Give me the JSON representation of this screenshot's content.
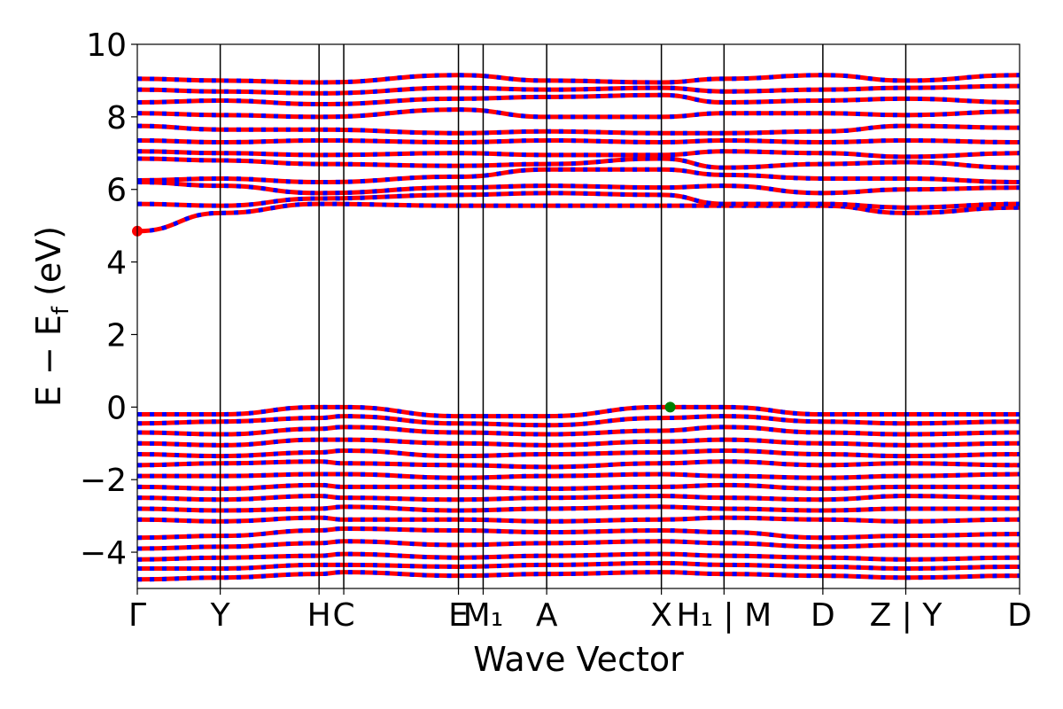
{
  "chart_data": {
    "type": "line",
    "title": "",
    "xlabel": "Wave Vector",
    "ylabel_parts": {
      "main": "E − E",
      "sub": "f",
      "unit": " (eV)"
    },
    "ylim": [
      -5,
      10
    ],
    "yticks": [
      -4,
      -2,
      0,
      2,
      4,
      6,
      8,
      10
    ],
    "ytick_labels": [
      "−4",
      "−2",
      "0",
      "2",
      "4",
      "6",
      "8",
      "10"
    ],
    "xlim": [
      0,
      1
    ],
    "grid": false,
    "legend": "none",
    "high_symmetry_points": [
      {
        "label": "Γ",
        "x": 0.0
      },
      {
        "label": "Y",
        "x": 0.094
      },
      {
        "label": "H",
        "x": 0.206,
        "vertical_line": true
      },
      {
        "label": "C",
        "x": 0.234
      },
      {
        "label": "E",
        "x": 0.364
      },
      {
        "label": "M₁",
        "x": 0.392
      },
      {
        "label": "A",
        "x": 0.464
      },
      {
        "label": "X",
        "x": 0.594
      },
      {
        "label": "H₁ | M",
        "x": 0.665
      },
      {
        "label": "D",
        "x": 0.777
      },
      {
        "label": "Z | Y",
        "x": 0.871
      },
      {
        "label": "D",
        "x": 1.0
      }
    ],
    "spin_colors": {
      "up": "#ff0000",
      "down": "#0000ff"
    },
    "markers": [
      {
        "name": "CBM",
        "x": 0.0,
        "y": 4.85,
        "color": "#ff0000"
      },
      {
        "name": "VBM",
        "x": 0.604,
        "y": 0.0,
        "color": "#008000"
      }
    ],
    "conduction_bands": [
      {
        "x": [
          0,
          0.094,
          0.206,
          0.364,
          0.464,
          0.594,
          0.665,
          0.777,
          0.871,
          1.0
        ],
        "y": [
          4.85,
          5.35,
          5.6,
          5.55,
          5.55,
          5.55,
          5.55,
          5.55,
          5.35,
          5.5
        ]
      },
      {
        "x": [
          0,
          0.094,
          0.206,
          0.364,
          0.464,
          0.594,
          0.665,
          0.777,
          0.871,
          1.0
        ],
        "y": [
          5.6,
          5.55,
          5.75,
          5.85,
          5.9,
          5.85,
          5.6,
          5.6,
          5.5,
          5.6
        ]
      },
      {
        "x": [
          0,
          0.094,
          0.206,
          0.364,
          0.464,
          0.594,
          0.665,
          0.777,
          0.871,
          1.0
        ],
        "y": [
          6.2,
          6.1,
          5.9,
          6.05,
          6.1,
          6.05,
          6.1,
          5.9,
          6.0,
          6.05
        ]
      },
      {
        "x": [
          0,
          0.094,
          0.206,
          0.364,
          0.464,
          0.594,
          0.665,
          0.777,
          0.871,
          1.0
        ],
        "y": [
          6.25,
          6.3,
          6.2,
          6.35,
          6.55,
          6.55,
          6.4,
          6.3,
          6.3,
          6.2
        ]
      },
      {
        "x": [
          0,
          0.094,
          0.206,
          0.364,
          0.464,
          0.594,
          0.665,
          0.777,
          0.871,
          1.0
        ],
        "y": [
          6.85,
          6.8,
          6.7,
          6.65,
          6.7,
          6.85,
          6.6,
          6.7,
          6.75,
          6.6
        ]
      },
      {
        "x": [
          0,
          0.094,
          0.206,
          0.364,
          0.464,
          0.594,
          0.665,
          0.777,
          0.871,
          1.0
        ],
        "y": [
          7.05,
          7.0,
          6.95,
          7.0,
          6.95,
          6.95,
          7.05,
          7.0,
          6.9,
          7.0
        ]
      },
      {
        "x": [
          0,
          0.094,
          0.206,
          0.364,
          0.464,
          0.594,
          0.665,
          0.777,
          0.871,
          1.0
        ],
        "y": [
          7.35,
          7.3,
          7.35,
          7.3,
          7.35,
          7.3,
          7.35,
          7.3,
          7.35,
          7.3
        ]
      },
      {
        "x": [
          0,
          0.094,
          0.206,
          0.364,
          0.464,
          0.594,
          0.665,
          0.777,
          0.871,
          1.0
        ],
        "y": [
          7.75,
          7.65,
          7.65,
          7.55,
          7.6,
          7.55,
          7.55,
          7.6,
          7.75,
          7.7
        ]
      },
      {
        "x": [
          0,
          0.094,
          0.206,
          0.364,
          0.464,
          0.594,
          0.665,
          0.777,
          0.871,
          1.0
        ],
        "y": [
          8.1,
          8.05,
          8.0,
          8.2,
          8.0,
          8.0,
          8.1,
          8.1,
          8.05,
          8.15
        ]
      },
      {
        "x": [
          0,
          0.094,
          0.206,
          0.364,
          0.464,
          0.594,
          0.665,
          0.777,
          0.871,
          1.0
        ],
        "y": [
          8.4,
          8.45,
          8.35,
          8.5,
          8.55,
          8.6,
          8.4,
          8.45,
          8.5,
          8.4
        ]
      },
      {
        "x": [
          0,
          0.094,
          0.206,
          0.364,
          0.464,
          0.594,
          0.665,
          0.777,
          0.871,
          1.0
        ],
        "y": [
          8.75,
          8.7,
          8.65,
          8.8,
          8.75,
          8.8,
          8.7,
          8.75,
          8.8,
          8.85
        ]
      },
      {
        "x": [
          0,
          0.094,
          0.206,
          0.364,
          0.464,
          0.594,
          0.665,
          0.777,
          0.871,
          1.0
        ],
        "y": [
          9.05,
          9.0,
          8.95,
          9.15,
          9.0,
          8.95,
          9.05,
          9.15,
          9.0,
          9.15
        ]
      }
    ],
    "valence_bands": [
      {
        "x": [
          0,
          0.094,
          0.206,
          0.234,
          0.364,
          0.464,
          0.594,
          0.665,
          0.777,
          0.871,
          1.0
        ],
        "y": [
          -0.2,
          -0.2,
          0.0,
          0.0,
          -0.25,
          -0.25,
          0.0,
          0.0,
          -0.2,
          -0.2,
          -0.2
        ]
      },
      {
        "x": [
          0,
          0.094,
          0.206,
          0.234,
          0.364,
          0.464,
          0.594,
          0.665,
          0.777,
          0.871,
          1.0
        ],
        "y": [
          -0.45,
          -0.4,
          -0.3,
          -0.25,
          -0.45,
          -0.5,
          -0.3,
          -0.25,
          -0.4,
          -0.45,
          -0.4
        ]
      },
      {
        "x": [
          0,
          0.094,
          0.206,
          0.234,
          0.364,
          0.464,
          0.594,
          0.665,
          0.777,
          0.871,
          1.0
        ],
        "y": [
          -0.7,
          -0.75,
          -0.6,
          -0.55,
          -0.7,
          -0.75,
          -0.65,
          -0.55,
          -0.7,
          -0.75,
          -0.7
        ]
      },
      {
        "x": [
          0,
          0.094,
          0.206,
          0.234,
          0.364,
          0.464,
          0.594,
          0.665,
          0.777,
          0.871,
          1.0
        ],
        "y": [
          -1.0,
          -1.05,
          -0.9,
          -0.9,
          -1.0,
          -1.05,
          -0.95,
          -0.9,
          -1.0,
          -1.05,
          -1.0
        ]
      },
      {
        "x": [
          0,
          0.094,
          0.206,
          0.234,
          0.364,
          0.464,
          0.594,
          0.665,
          0.777,
          0.871,
          1.0
        ],
        "y": [
          -1.3,
          -1.35,
          -1.25,
          -1.2,
          -1.35,
          -1.3,
          -1.25,
          -1.2,
          -1.3,
          -1.35,
          -1.3
        ]
      },
      {
        "x": [
          0,
          0.094,
          0.206,
          0.234,
          0.364,
          0.464,
          0.594,
          0.665,
          0.777,
          0.871,
          1.0
        ],
        "y": [
          -1.6,
          -1.55,
          -1.5,
          -1.55,
          -1.6,
          -1.65,
          -1.55,
          -1.5,
          -1.6,
          -1.55,
          -1.6
        ]
      },
      {
        "x": [
          0,
          0.094,
          0.206,
          0.234,
          0.364,
          0.464,
          0.594,
          0.665,
          0.777,
          0.871,
          1.0
        ],
        "y": [
          -1.9,
          -1.9,
          -1.85,
          -1.85,
          -1.95,
          -1.9,
          -1.85,
          -1.9,
          -1.95,
          -1.9,
          -1.85
        ]
      },
      {
        "x": [
          0,
          0.094,
          0.206,
          0.234,
          0.364,
          0.464,
          0.594,
          0.665,
          0.777,
          0.871,
          1.0
        ],
        "y": [
          -2.2,
          -2.25,
          -2.15,
          -2.2,
          -2.2,
          -2.25,
          -2.2,
          -2.15,
          -2.25,
          -2.2,
          -2.2
        ]
      },
      {
        "x": [
          0,
          0.094,
          0.206,
          0.234,
          0.364,
          0.464,
          0.594,
          0.665,
          0.777,
          0.871,
          1.0
        ],
        "y": [
          -2.5,
          -2.55,
          -2.45,
          -2.5,
          -2.55,
          -2.5,
          -2.45,
          -2.5,
          -2.55,
          -2.45,
          -2.5
        ]
      },
      {
        "x": [
          0,
          0.094,
          0.206,
          0.234,
          0.364,
          0.464,
          0.594,
          0.665,
          0.777,
          0.871,
          1.0
        ],
        "y": [
          -2.8,
          -2.85,
          -2.8,
          -2.75,
          -2.85,
          -2.8,
          -2.75,
          -2.8,
          -2.85,
          -2.8,
          -2.8
        ]
      },
      {
        "x": [
          0,
          0.094,
          0.206,
          0.234,
          0.364,
          0.464,
          0.594,
          0.665,
          0.777,
          0.871,
          1.0
        ],
        "y": [
          -3.1,
          -3.15,
          -3.05,
          -3.1,
          -3.1,
          -3.15,
          -3.1,
          -3.05,
          -3.1,
          -3.15,
          -3.1
        ]
      },
      {
        "x": [
          0,
          0.094,
          0.206,
          0.234,
          0.364,
          0.464,
          0.594,
          0.665,
          0.777,
          0.871,
          1.0
        ],
        "y": [
          -3.6,
          -3.55,
          -3.4,
          -3.35,
          -3.4,
          -3.45,
          -3.4,
          -3.45,
          -3.6,
          -3.55,
          -3.5
        ]
      },
      {
        "x": [
          0,
          0.094,
          0.206,
          0.234,
          0.364,
          0.464,
          0.594,
          0.665,
          0.777,
          0.871,
          1.0
        ],
        "y": [
          -3.9,
          -3.85,
          -3.75,
          -3.7,
          -3.8,
          -3.75,
          -3.7,
          -3.75,
          -3.85,
          -3.8,
          -3.8
        ]
      },
      {
        "x": [
          0,
          0.094,
          0.206,
          0.234,
          0.364,
          0.464,
          0.594,
          0.665,
          0.777,
          0.871,
          1.0
        ],
        "y": [
          -4.2,
          -4.15,
          -4.1,
          -4.05,
          -4.15,
          -4.1,
          -4.05,
          -4.1,
          -4.15,
          -4.2,
          -4.15
        ]
      },
      {
        "x": [
          0,
          0.094,
          0.206,
          0.234,
          0.364,
          0.464,
          0.594,
          0.665,
          0.777,
          0.871,
          1.0
        ],
        "y": [
          -4.45,
          -4.45,
          -4.35,
          -4.35,
          -4.4,
          -4.35,
          -4.3,
          -4.35,
          -4.4,
          -4.45,
          -4.4
        ]
      },
      {
        "x": [
          0,
          0.094,
          0.206,
          0.234,
          0.364,
          0.464,
          0.594,
          0.665,
          0.777,
          0.871,
          1.0
        ],
        "y": [
          -4.75,
          -4.7,
          -4.6,
          -4.55,
          -4.65,
          -4.6,
          -4.55,
          -4.6,
          -4.65,
          -4.7,
          -4.65
        ]
      }
    ]
  }
}
